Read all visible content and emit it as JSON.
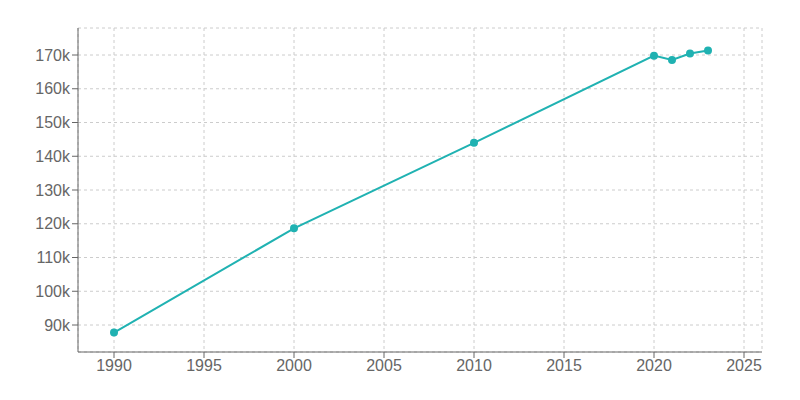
{
  "chart_data": {
    "type": "line",
    "x": [
      1990,
      2000,
      2010,
      2020,
      2021,
      2022,
      2023
    ],
    "values": [
      87758,
      118652,
      143986,
      169810,
      168538,
      170419,
      171327
    ],
    "color": "#20b2b2",
    "marker": "circle",
    "xlim": [
      1988,
      2026
    ],
    "xticks": [
      1990,
      1995,
      2000,
      2005,
      2010,
      2015,
      2020,
      2025
    ],
    "ylim": [
      82000,
      178000
    ],
    "yticks": [
      {
        "value": 90000,
        "label": "90k"
      },
      {
        "value": 100000,
        "label": "100k"
      },
      {
        "value": 110000,
        "label": "110k"
      },
      {
        "value": 120000,
        "label": "120k"
      },
      {
        "value": 130000,
        "label": "130k"
      },
      {
        "value": 140000,
        "label": "140k"
      },
      {
        "value": 150000,
        "label": "150k"
      },
      {
        "value": 160000,
        "label": "160k"
      },
      {
        "value": 170000,
        "label": "170k"
      }
    ],
    "grid": true
  }
}
